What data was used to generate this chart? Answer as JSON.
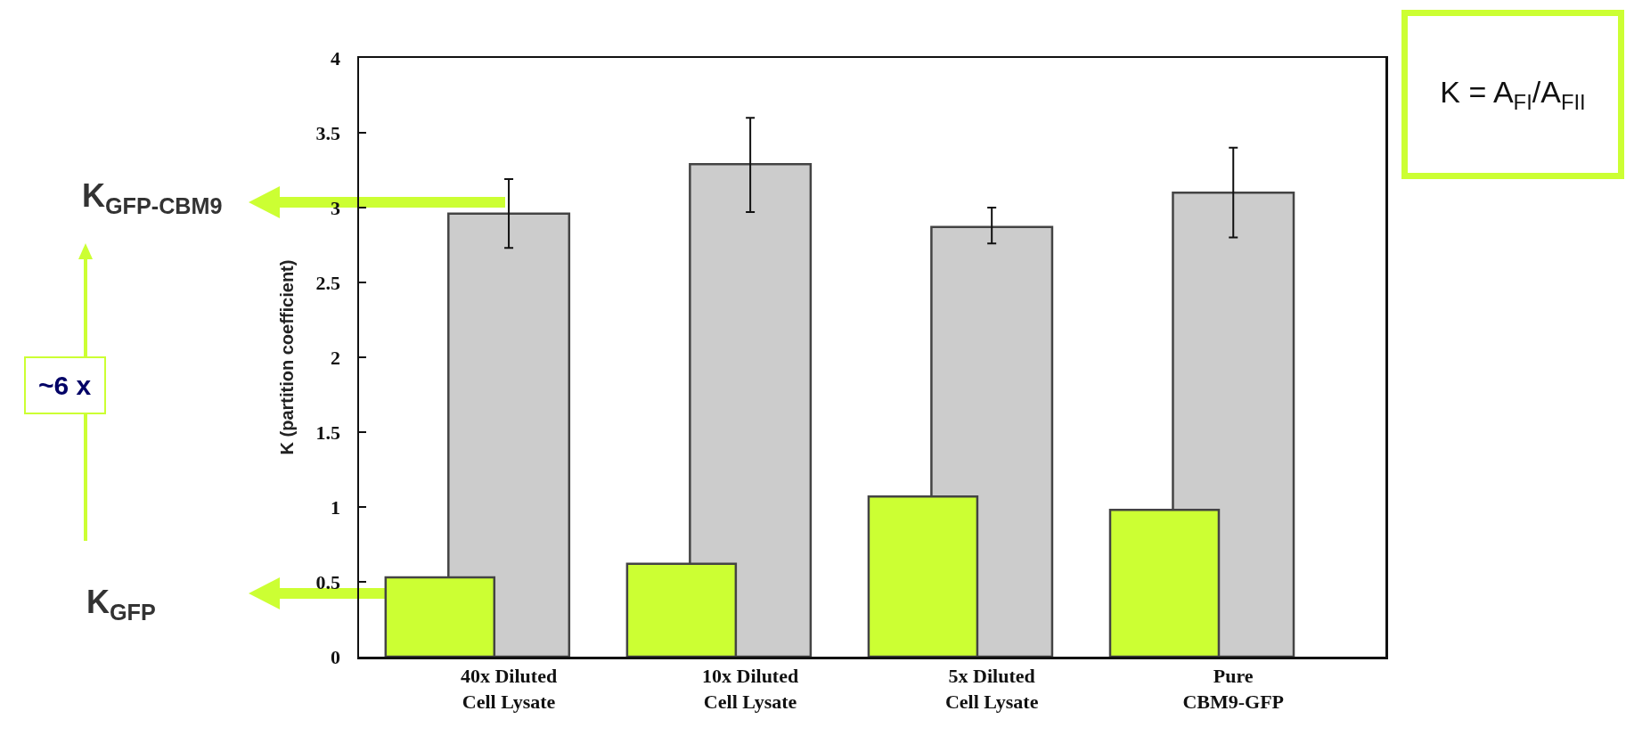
{
  "chart_data": {
    "type": "bar",
    "ylabel": "K (partition coefficient)",
    "categories": [
      "40x Diluted\nCell Lysate",
      "10x Diluted\nCell Lysate",
      "5x Diluted\nCell Lysate",
      "Pure\nCBM9-GFP"
    ],
    "series": [
      {
        "color": "#cccccc",
        "values": [
          2.96,
          3.29,
          2.87,
          3.1
        ],
        "errors": [
          [
            2.73,
            3.19
          ],
          [
            2.97,
            3.6
          ],
          [
            2.76,
            3.0
          ],
          [
            2.8,
            3.4
          ]
        ]
      },
      {
        "color": "#ccff33",
        "values": [
          0.53,
          0.62,
          1.07,
          0.98
        ]
      }
    ],
    "ylim": [
      0,
      4
    ],
    "yticks": [
      0,
      0.5,
      1,
      1.5,
      2,
      2.5,
      3,
      3.5,
      4
    ],
    "grid": false,
    "annotations": [
      "K$_{GFP-CBM9}$",
      "K$_{GFP}$",
      "~6 x",
      "K = A$_{FI}$/A$_{FII}$"
    ]
  }
}
